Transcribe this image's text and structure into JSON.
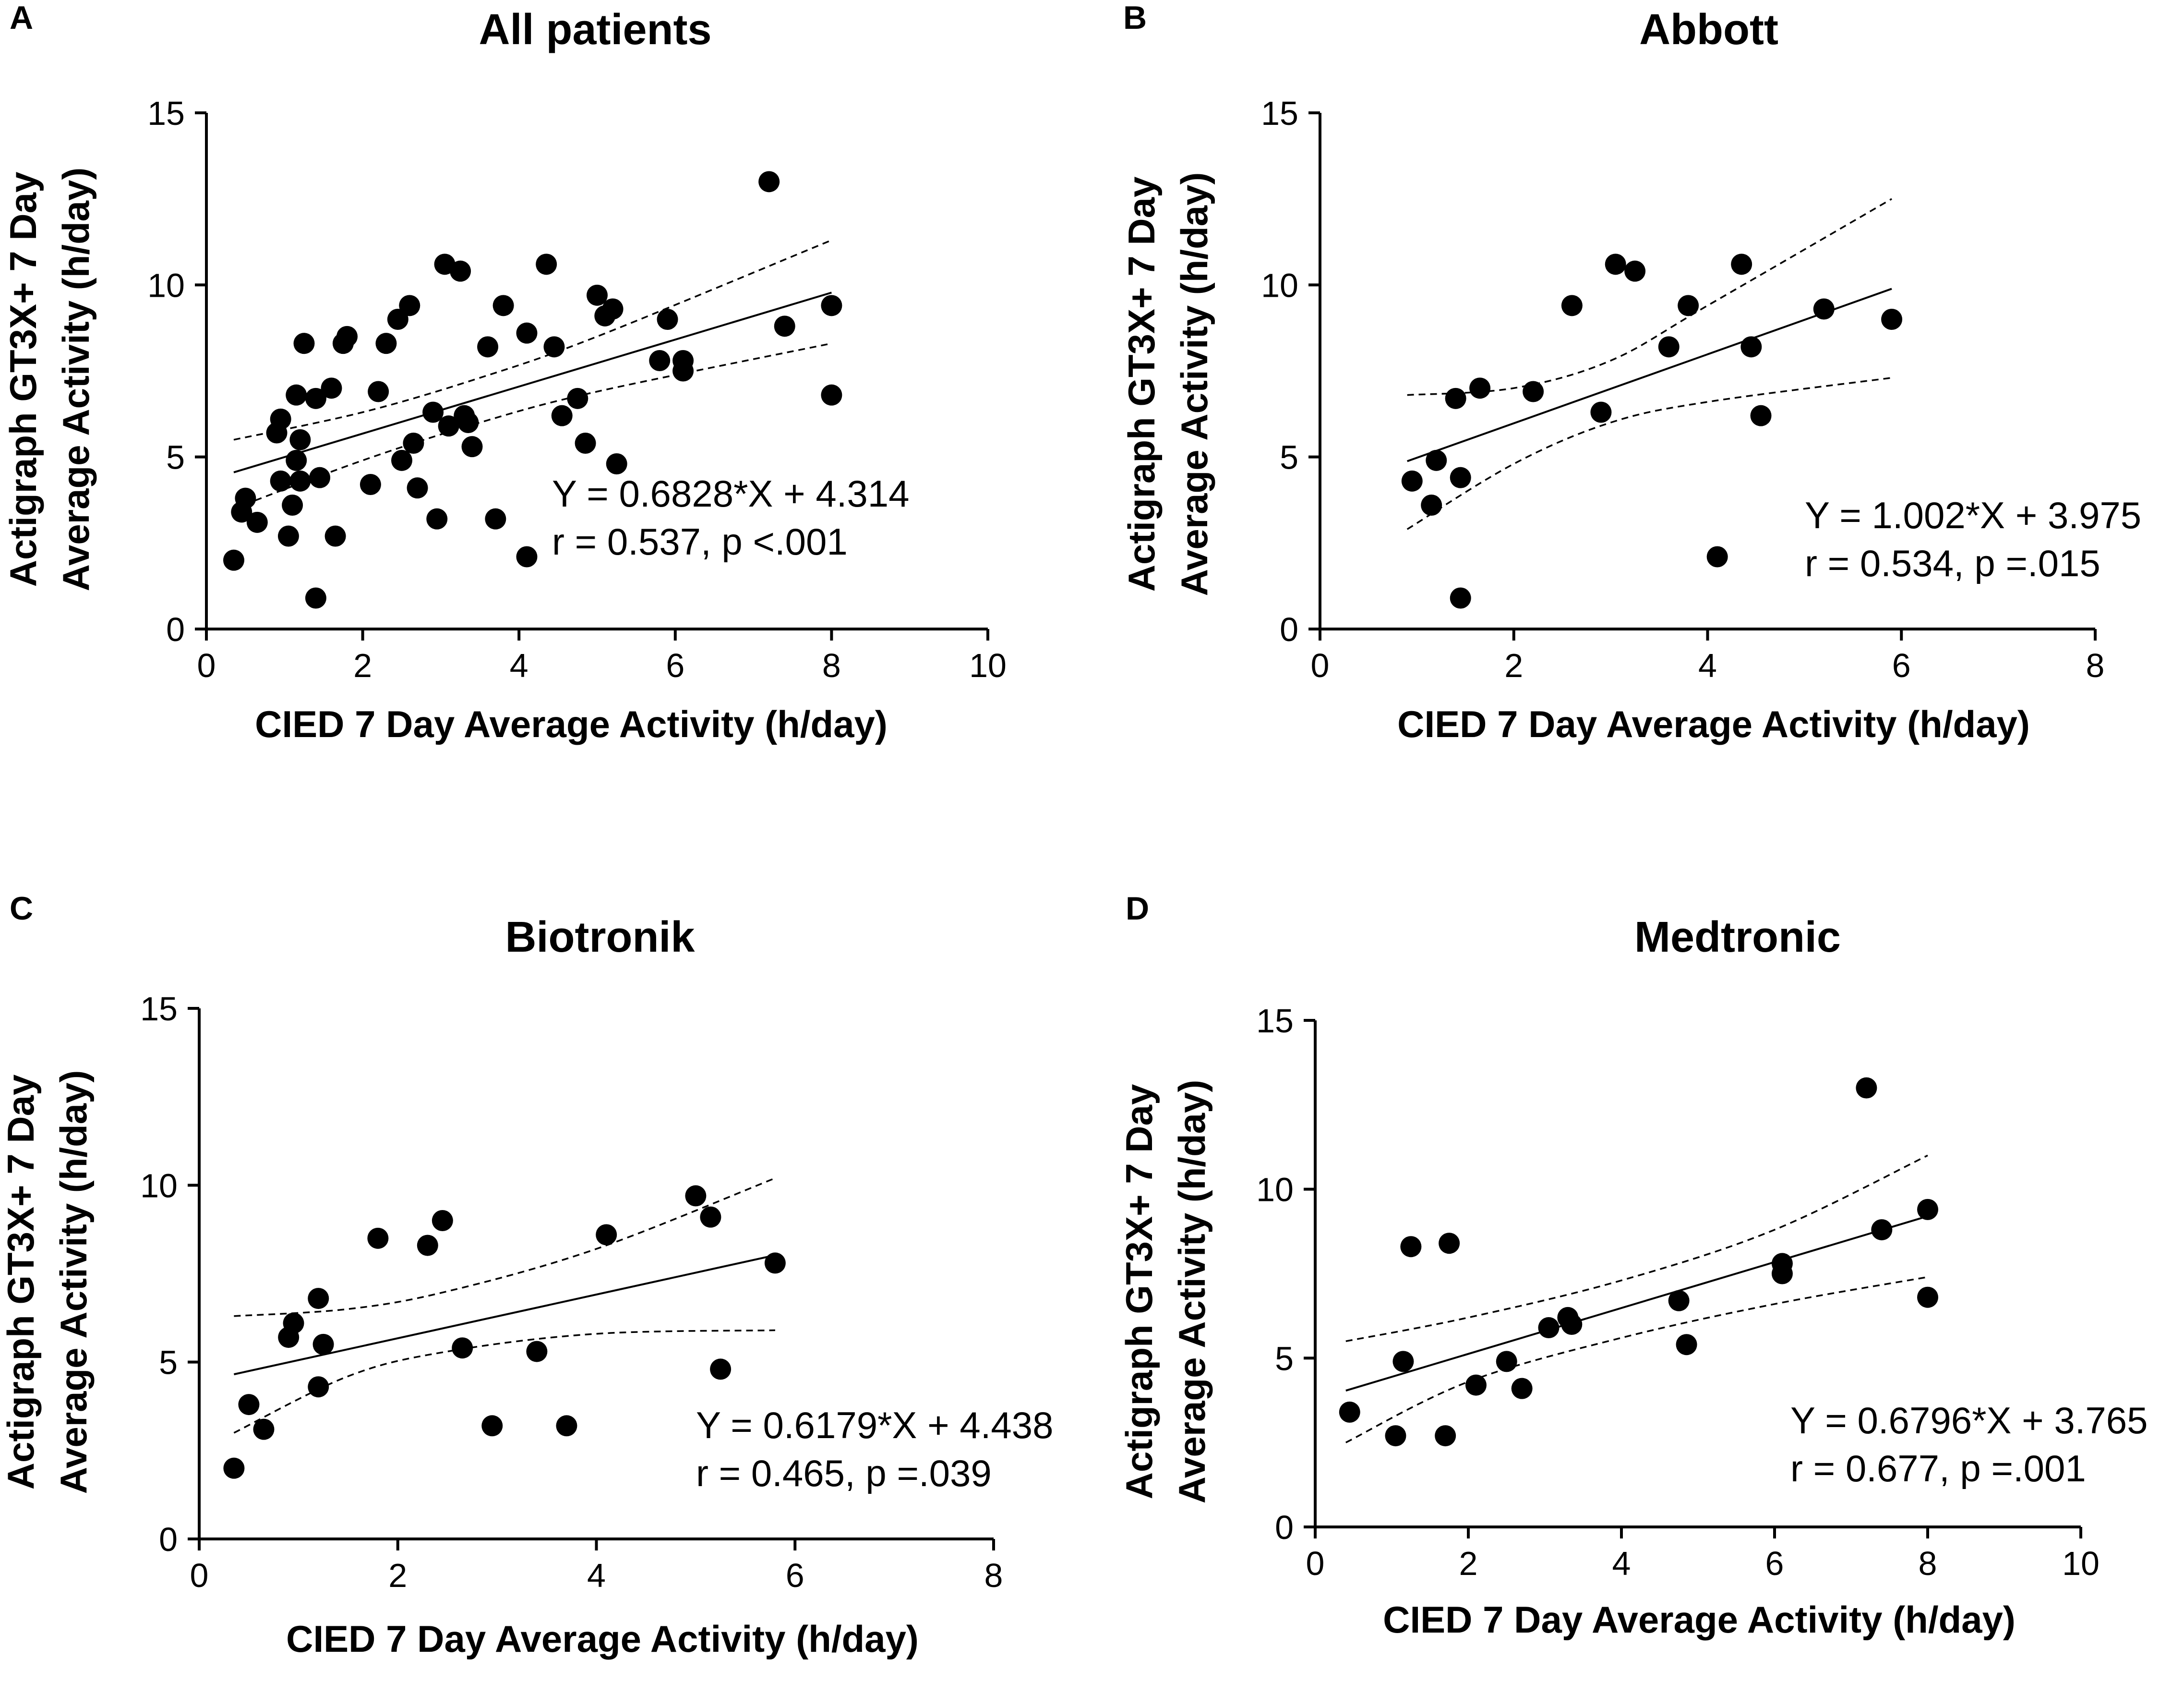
{
  "chart_data": [
    {
      "panel": "A",
      "type": "scatter",
      "title": "All patients",
      "xlabel": "CIED 7 Day Average Activity (h/day)",
      "ylabel": [
        "Actigraph GT3X+ 7 Day",
        "Average Activity (h/day)"
      ],
      "xlim": [
        0,
        10
      ],
      "ylim": [
        0,
        15
      ],
      "xticks": [
        0,
        2,
        4,
        6,
        8,
        10
      ],
      "yticks": [
        0,
        5,
        10,
        15
      ],
      "regression": {
        "slope": 0.6828,
        "intercept": 4.314,
        "x_range": [
          0.35,
          8.0
        ]
      },
      "ci_lower": [
        [
          0.35,
          3.5
        ],
        [
          2.0,
          4.9
        ],
        [
          3.5,
          6.0
        ],
        [
          5.0,
          6.9
        ],
        [
          8.0,
          8.3
        ]
      ],
      "ci_upper": [
        [
          0.35,
          5.5
        ],
        [
          2.0,
          6.3
        ],
        [
          3.5,
          7.3
        ],
        [
          5.0,
          8.5
        ],
        [
          8.0,
          11.3
        ]
      ],
      "annotation": [
        "Y = 0.6828*X + 4.314",
        "r = 0.537, p <.001"
      ],
      "points": [
        [
          0.35,
          2.0
        ],
        [
          0.45,
          3.4
        ],
        [
          0.5,
          3.8
        ],
        [
          0.65,
          3.1
        ],
        [
          0.9,
          5.7
        ],
        [
          0.95,
          6.1
        ],
        [
          0.95,
          4.3
        ],
        [
          1.05,
          2.7
        ],
        [
          1.1,
          3.6
        ],
        [
          1.15,
          4.9
        ],
        [
          1.15,
          6.8
        ],
        [
          1.2,
          5.5
        ],
        [
          1.2,
          4.3
        ],
        [
          1.25,
          8.3
        ],
        [
          1.4,
          6.7
        ],
        [
          1.4,
          0.9
        ],
        [
          1.45,
          4.4
        ],
        [
          1.6,
          7.0
        ],
        [
          1.65,
          2.7
        ],
        [
          1.75,
          8.3
        ],
        [
          1.8,
          8.5
        ],
        [
          2.1,
          4.2
        ],
        [
          2.2,
          6.9
        ],
        [
          2.3,
          8.3
        ],
        [
          2.45,
          9.0
        ],
        [
          2.5,
          4.9
        ],
        [
          2.6,
          9.4
        ],
        [
          2.65,
          5.4
        ],
        [
          2.7,
          4.1
        ],
        [
          2.9,
          6.3
        ],
        [
          2.95,
          3.2
        ],
        [
          3.05,
          10.6
        ],
        [
          3.1,
          5.9
        ],
        [
          3.25,
          10.4
        ],
        [
          3.3,
          6.2
        ],
        [
          3.35,
          6.0
        ],
        [
          3.4,
          5.3
        ],
        [
          3.6,
          8.2
        ],
        [
          3.7,
          3.2
        ],
        [
          3.8,
          9.4
        ],
        [
          4.1,
          2.1
        ],
        [
          4.1,
          8.6
        ],
        [
          4.35,
          10.6
        ],
        [
          4.45,
          8.2
        ],
        [
          4.55,
          6.2
        ],
        [
          4.75,
          6.7
        ],
        [
          4.85,
          5.4
        ],
        [
          5.0,
          9.7
        ],
        [
          5.1,
          9.1
        ],
        [
          5.2,
          9.3
        ],
        [
          5.25,
          4.8
        ],
        [
          5.8,
          7.8
        ],
        [
          5.9,
          9.0
        ],
        [
          6.1,
          7.5
        ],
        [
          6.1,
          7.8
        ],
        [
          7.2,
          13.0
        ],
        [
          7.4,
          8.8
        ],
        [
          8.0,
          9.4
        ],
        [
          8.0,
          6.8
        ]
      ]
    },
    {
      "panel": "B",
      "type": "scatter",
      "title": "Abbott",
      "xlabel": "CIED 7 Day Average Activity (h/day)",
      "ylabel": [
        "Actigraph GT3X+ 7 Day",
        "Average Activity (h/day)"
      ],
      "xlim": [
        0,
        8
      ],
      "ylim": [
        0,
        15
      ],
      "xticks": [
        0,
        2,
        4,
        6,
        8
      ],
      "yticks": [
        0,
        5,
        10,
        15
      ],
      "regression": {
        "slope": 1.002,
        "intercept": 3.975,
        "x_range": [
          0.9,
          5.9
        ]
      },
      "ci_lower": [
        [
          0.9,
          2.9
        ],
        [
          2.0,
          4.8
        ],
        [
          3.0,
          6.0
        ],
        [
          4.0,
          6.6
        ],
        [
          5.9,
          7.3
        ]
      ],
      "ci_upper": [
        [
          0.9,
          6.8
        ],
        [
          2.0,
          7.0
        ],
        [
          3.0,
          7.8
        ],
        [
          4.0,
          9.4
        ],
        [
          5.9,
          12.5
        ]
      ],
      "annotation": [
        "Y = 1.002*X + 3.975",
        "r = 0.534, p =.015"
      ],
      "points": [
        [
          0.95,
          4.3
        ],
        [
          1.15,
          3.6
        ],
        [
          1.2,
          4.9
        ],
        [
          1.4,
          6.7
        ],
        [
          1.45,
          0.9
        ],
        [
          1.45,
          4.4
        ],
        [
          1.65,
          7.0
        ],
        [
          2.2,
          6.9
        ],
        [
          2.6,
          9.4
        ],
        [
          2.9,
          6.3
        ],
        [
          3.05,
          10.6
        ],
        [
          3.25,
          10.4
        ],
        [
          3.6,
          8.2
        ],
        [
          3.8,
          9.4
        ],
        [
          4.1,
          2.1
        ],
        [
          4.35,
          10.6
        ],
        [
          4.45,
          8.2
        ],
        [
          4.55,
          6.2
        ],
        [
          5.2,
          9.3
        ],
        [
          5.9,
          9.0
        ]
      ]
    },
    {
      "panel": "C",
      "type": "scatter",
      "title": "Biotronik",
      "xlabel": "CIED 7 Day Average Activity (h/day)",
      "ylabel": [
        "Actigraph GT3X+ 7 Day",
        "Average Activity (h/day)"
      ],
      "xlim": [
        0,
        8
      ],
      "ylim": [
        0,
        15
      ],
      "xticks": [
        0,
        2,
        4,
        6,
        8
      ],
      "yticks": [
        0,
        5,
        10,
        15
      ],
      "regression": {
        "slope": 0.6179,
        "intercept": 4.438,
        "x_range": [
          0.35,
          5.8
        ]
      },
      "ci_lower": [
        [
          0.35,
          3.0
        ],
        [
          1.5,
          4.6
        ],
        [
          2.5,
          5.3
        ],
        [
          4.0,
          5.8
        ],
        [
          5.8,
          5.9
        ]
      ],
      "ci_upper": [
        [
          0.35,
          6.3
        ],
        [
          1.5,
          6.5
        ],
        [
          2.5,
          7.0
        ],
        [
          4.0,
          8.2
        ],
        [
          5.8,
          10.2
        ]
      ],
      "annotation": [
        "Y = 0.6179*X + 4.438",
        "r = 0.465, p =.039"
      ],
      "points": [
        [
          0.35,
          2.0
        ],
        [
          0.5,
          3.8
        ],
        [
          0.65,
          3.1
        ],
        [
          0.9,
          5.7
        ],
        [
          0.95,
          6.1
        ],
        [
          1.2,
          6.8
        ],
        [
          1.2,
          4.3
        ],
        [
          1.25,
          5.5
        ],
        [
          1.8,
          8.5
        ],
        [
          2.3,
          8.3
        ],
        [
          2.45,
          9.0
        ],
        [
          2.65,
          5.4
        ],
        [
          2.95,
          3.2
        ],
        [
          3.4,
          5.3
        ],
        [
          3.7,
          3.2
        ],
        [
          4.1,
          8.6
        ],
        [
          5.0,
          9.7
        ],
        [
          5.15,
          9.1
        ],
        [
          5.25,
          4.8
        ],
        [
          5.8,
          7.8
        ]
      ]
    },
    {
      "panel": "D",
      "type": "scatter",
      "title": "Medtronic",
      "xlabel": "CIED 7 Day Average Activity (h/day)",
      "ylabel": [
        "Actigraph GT3X+ 7 Day",
        "Average Activity (h/day)"
      ],
      "xlim": [
        0,
        10
      ],
      "ylim": [
        0,
        15
      ],
      "xticks": [
        0,
        2,
        4,
        6,
        8,
        10
      ],
      "yticks": [
        0,
        5,
        10,
        15
      ],
      "regression": {
        "slope": 0.6796,
        "intercept": 3.765,
        "x_range": [
          0.4,
          8.0
        ]
      },
      "ci_lower": [
        [
          0.4,
          2.5
        ],
        [
          2.0,
          4.3
        ],
        [
          4.0,
          5.6
        ],
        [
          6.0,
          6.6
        ],
        [
          8.0,
          7.4
        ]
      ],
      "ci_upper": [
        [
          0.4,
          5.5
        ],
        [
          2.0,
          6.2
        ],
        [
          4.0,
          7.3
        ],
        [
          6.0,
          8.8
        ],
        [
          8.0,
          11.0
        ]
      ],
      "annotation": [
        "Y = 0.6796*X + 3.765",
        "r = 0.677, p =.001"
      ],
      "points": [
        [
          0.45,
          3.4
        ],
        [
          1.05,
          2.7
        ],
        [
          1.15,
          4.9
        ],
        [
          1.25,
          8.3
        ],
        [
          1.7,
          2.7
        ],
        [
          1.75,
          8.4
        ],
        [
          2.1,
          4.2
        ],
        [
          2.5,
          4.9
        ],
        [
          2.7,
          4.1
        ],
        [
          3.05,
          5.9
        ],
        [
          3.3,
          6.2
        ],
        [
          3.35,
          6.0
        ],
        [
          4.75,
          6.7
        ],
        [
          4.85,
          5.4
        ],
        [
          6.1,
          7.5
        ],
        [
          6.1,
          7.8
        ],
        [
          7.2,
          13.0
        ],
        [
          7.4,
          8.8
        ],
        [
          8.0,
          9.4
        ],
        [
          8.0,
          6.8
        ]
      ]
    }
  ]
}
